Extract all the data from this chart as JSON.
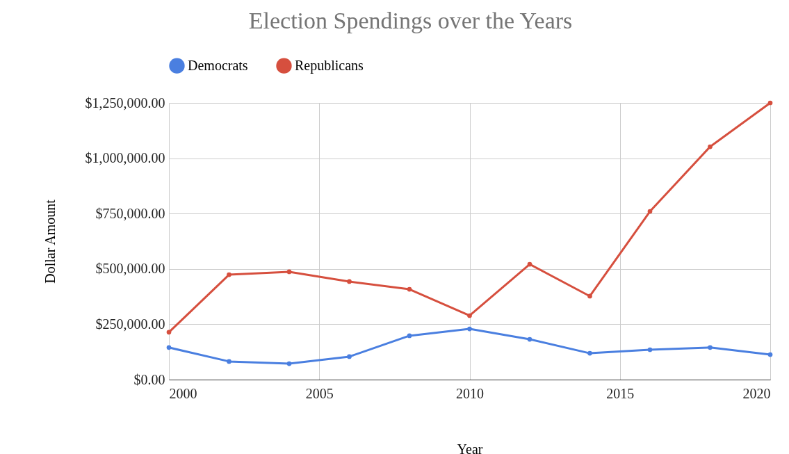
{
  "chart_data": {
    "type": "line",
    "title": "Election Spendings over the Years",
    "xlabel": "Year",
    "ylabel": "Dollar Amount",
    "x": [
      2000,
      2002,
      2004,
      2006,
      2008,
      2010,
      2012,
      2014,
      2016,
      2018,
      2020
    ],
    "series": [
      {
        "name": "Democrats",
        "color": "#4a7fe0",
        "values": [
          145000,
          82000,
          72000,
          104000,
          198000,
          229000,
          182000,
          119000,
          135000,
          145000,
          113000
        ]
      },
      {
        "name": "Republicans",
        "color": "#d64f3e",
        "values": [
          214000,
          474000,
          487000,
          443000,
          408000,
          289000,
          521000,
          377000,
          760000,
          1052000,
          1250000
        ]
      }
    ],
    "xlim": [
      2000,
      2020
    ],
    "xticks": [
      2000,
      2005,
      2010,
      2015,
      2020
    ],
    "ylim": [
      0,
      1250000
    ],
    "yticks": [
      {
        "value": 0,
        "label": "$0.00"
      },
      {
        "value": 250000,
        "label": "$250,000.00"
      },
      {
        "value": 500000,
        "label": "$500,000.00"
      },
      {
        "value": 750000,
        "label": "$750,000.00"
      },
      {
        "value": 1000000,
        "label": "$1,000,000.00"
      },
      {
        "value": 1250000,
        "label": "$1,250,000.00"
      }
    ],
    "grid": true,
    "legend": "top",
    "marker": "circle",
    "line_style": "solid"
  }
}
